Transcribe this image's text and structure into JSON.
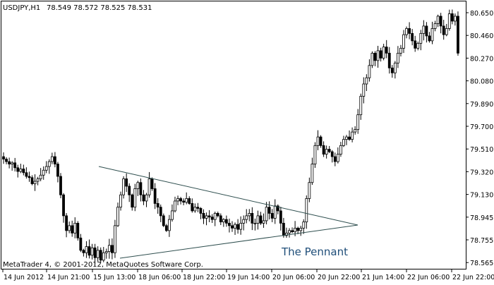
{
  "header": {
    "symbol_timeframe": "USDJPY,H1",
    "ohlc": "78.549 78.572 78.525 78.531"
  },
  "footer": {
    "copyright": "MetaTrader 4, © 2001-2012, MetaQuotes Software Corp."
  },
  "annotation": {
    "label": "The Pennant"
  },
  "colors": {
    "background": "#ffffff",
    "frame": "#000000",
    "candle": "#000000",
    "trendline": "#2f4f4f",
    "annotation_text": "#1f4e79"
  },
  "chart_data": {
    "type": "candlestick",
    "title": "USDJPY,H1",
    "y_axis_labels": [
      "80.650",
      "80.460",
      "80.270",
      "80.080",
      "79.890",
      "79.700",
      "79.510",
      "79.320",
      "79.130",
      "78.945",
      "78.755",
      "78.565"
    ],
    "x_axis_labels": [
      "14 Jun 2012",
      "14 Jun 21:00",
      "15 Jun 13:00",
      "18 Jun 06:00",
      "18 Jun 22:00",
      "19 Jun 14:00",
      "20 Jun 06:00",
      "20 Jun 22:00",
      "21 Jun 14:00",
      "22 Jun 06:00",
      "22 Jun 22:00"
    ],
    "ylim": [
      78.55,
      80.72
    ],
    "bar_count": 160,
    "close": [
      79.44,
      79.42,
      79.4,
      79.41,
      79.37,
      79.34,
      79.36,
      79.33,
      79.3,
      79.29,
      79.24,
      79.26,
      79.28,
      79.31,
      79.35,
      79.38,
      79.42,
      79.46,
      79.4,
      79.3,
      79.15,
      78.98,
      78.86,
      78.9,
      78.84,
      78.92,
      78.8,
      78.7,
      78.68,
      78.73,
      78.66,
      78.72,
      78.64,
      78.7,
      78.62,
      78.68,
      78.69,
      78.74,
      78.68,
      78.9,
      79.05,
      79.15,
      79.28,
      79.22,
      79.15,
      79.05,
      79.2,
      79.25,
      79.15,
      79.1,
      79.15,
      79.28,
      79.2,
      79.08,
      79.05,
      78.98,
      78.9,
      78.86,
      78.95,
      79.02,
      79.1,
      79.12,
      79.1,
      79.09,
      79.12,
      79.08,
      79.02,
      79.05,
      79.04,
      79.0,
      78.96,
      78.98,
      78.97,
      78.95,
      79.0,
      78.98,
      78.93,
      78.95,
      78.92,
      78.9,
      78.88,
      78.91,
      78.87,
      78.92,
      78.95,
      78.98,
      79.0,
      78.92,
      78.92,
      78.98,
      78.92,
      78.94,
      79.05,
      79.0,
      78.96,
      79.06,
      79.02,
      78.92,
      78.82,
      78.84,
      78.86,
      78.85,
      78.88,
      78.86,
      78.88,
      78.93,
      79.12,
      79.25,
      79.4,
      79.55,
      79.62,
      79.55,
      79.48,
      79.52,
      79.5,
      79.46,
      79.42,
      79.48,
      79.55,
      79.6,
      79.62,
      79.6,
      79.66,
      79.68,
      79.8,
      79.95,
      80.05,
      80.1,
      80.2,
      80.3,
      80.24,
      80.32,
      80.26,
      80.35,
      80.3,
      80.18,
      80.14,
      80.22,
      80.3,
      80.34,
      80.45,
      80.5,
      80.46,
      80.4,
      80.34,
      80.38,
      80.46,
      80.52,
      80.44,
      80.4,
      80.5,
      80.54,
      80.6,
      80.52,
      80.45,
      80.5,
      80.62,
      80.56,
      80.6,
      80.3
    ],
    "overlay_lines": [
      {
        "name": "pennant-upper",
        "points": [
          [
            "15 Jun 10:00",
            79.38
          ],
          [
            "21 Jun 09:00",
            78.9
          ]
        ]
      },
      {
        "name": "pennant-lower",
        "points": [
          [
            "15 Jun 18:00",
            78.64
          ],
          [
            "21 Jun 09:00",
            78.9
          ]
        ]
      }
    ]
  }
}
